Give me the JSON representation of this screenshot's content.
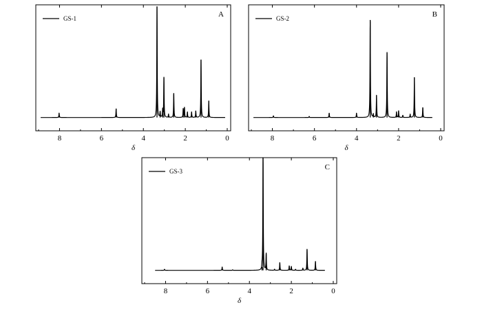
{
  "chart_data": [
    {
      "type": "line",
      "panel_label": "A",
      "xlabel": "δ",
      "xlim": [
        9,
        0
      ],
      "x_ticks": [
        "8",
        "6",
        "4",
        "2",
        "0"
      ],
      "series": [
        {
          "name": "GS-1",
          "x_range": [
            8.9,
            0.1
          ],
          "baseline": 0.12,
          "peaks": [
            {
              "x": 8.02,
              "h": 0.04
            },
            {
              "x": 5.3,
              "h": 0.08
            },
            {
              "x": 3.35,
              "h": 1.0
            },
            {
              "x": 3.2,
              "h": 0.05
            },
            {
              "x": 3.08,
              "h": 0.07
            },
            {
              "x": 3.02,
              "h": 0.36
            },
            {
              "x": 2.8,
              "h": 0.03
            },
            {
              "x": 2.55,
              "h": 0.22
            },
            {
              "x": 2.1,
              "h": 0.08
            },
            {
              "x": 2.04,
              "h": 0.09
            },
            {
              "x": 1.9,
              "h": 0.05
            },
            {
              "x": 1.7,
              "h": 0.05
            },
            {
              "x": 1.5,
              "h": 0.06
            },
            {
              "x": 1.25,
              "h": 0.52
            },
            {
              "x": 0.88,
              "h": 0.15
            }
          ]
        }
      ]
    },
    {
      "type": "line",
      "panel_label": "B",
      "xlabel": "δ",
      "xlim": [
        9,
        0
      ],
      "x_ticks": [
        "8",
        "6",
        "4",
        "2",
        "0"
      ],
      "series": [
        {
          "name": "GS-2",
          "x_range": [
            8.9,
            0.4
          ],
          "baseline": 0.12,
          "peaks": [
            {
              "x": 7.95,
              "h": 0.015
            },
            {
              "x": 6.25,
              "h": 0.01
            },
            {
              "x": 5.3,
              "h": 0.04
            },
            {
              "x": 4.0,
              "h": 0.04
            },
            {
              "x": 3.35,
              "h": 0.88
            },
            {
              "x": 3.2,
              "h": 0.03
            },
            {
              "x": 3.05,
              "h": 0.2
            },
            {
              "x": 2.55,
              "h": 0.59
            },
            {
              "x": 2.1,
              "h": 0.05
            },
            {
              "x": 2.0,
              "h": 0.06
            },
            {
              "x": 1.8,
              "h": 0.02
            },
            {
              "x": 1.45,
              "h": 0.03
            },
            {
              "x": 1.25,
              "h": 0.36
            },
            {
              "x": 0.85,
              "h": 0.09
            }
          ]
        }
      ]
    },
    {
      "type": "line",
      "panel_label": "C",
      "xlabel": "δ",
      "xlim": [
        9,
        0
      ],
      "x_ticks": [
        "8",
        "6",
        "4",
        "2",
        "0"
      ],
      "series": [
        {
          "name": "GS-3",
          "x_range": [
            8.5,
            0.4
          ],
          "baseline": 0.12,
          "peaks": [
            {
              "x": 8.05,
              "h": 0.01
            },
            {
              "x": 5.3,
              "h": 0.03
            },
            {
              "x": 4.8,
              "h": 0.005
            },
            {
              "x": 3.4,
              "h": 0.03
            },
            {
              "x": 3.35,
              "h": 1.05
            },
            {
              "x": 3.2,
              "h": 0.15
            },
            {
              "x": 2.8,
              "h": 0.01
            },
            {
              "x": 2.55,
              "h": 0.07
            },
            {
              "x": 2.1,
              "h": 0.04
            },
            {
              "x": 2.0,
              "h": 0.035
            },
            {
              "x": 1.8,
              "h": 0.01
            },
            {
              "x": 1.45,
              "h": 0.02
            },
            {
              "x": 1.25,
              "h": 0.19
            },
            {
              "x": 0.85,
              "h": 0.08
            }
          ]
        }
      ]
    }
  ]
}
